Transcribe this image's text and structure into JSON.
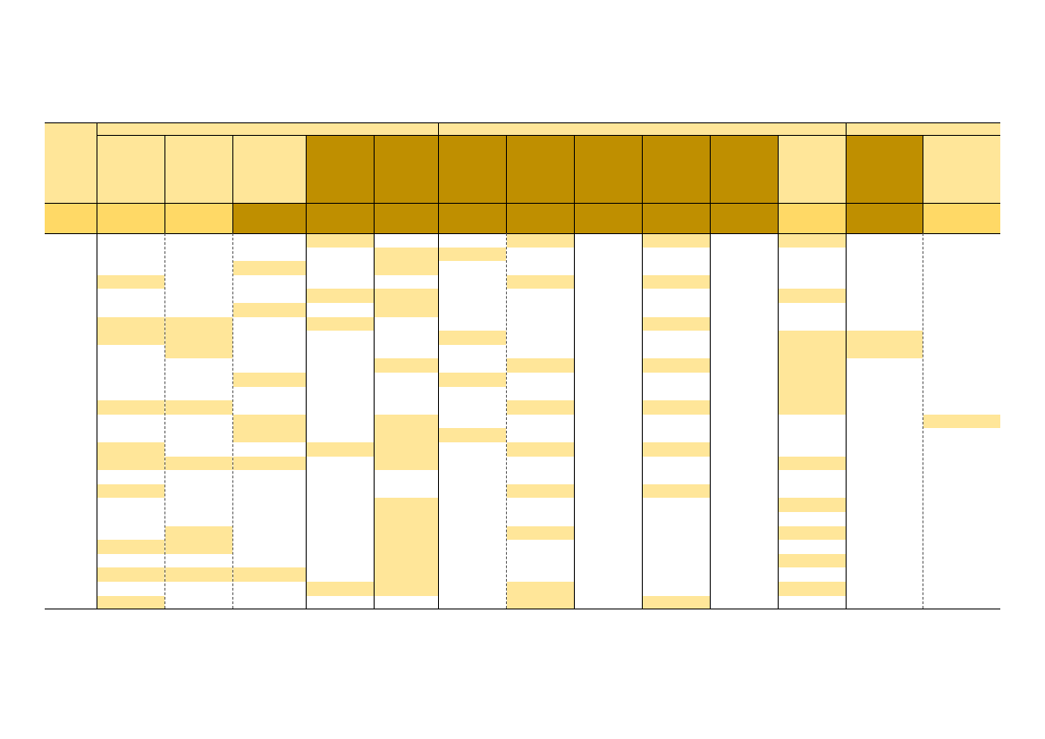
{
  "colors": {
    "light": "#FFE699",
    "medium": "#FFD966",
    "dark": "#BF8F00",
    "grid": "#000000"
  },
  "sheet": {
    "group_headers": [
      "",
      "",
      ""
    ],
    "column_headers": [
      "",
      "",
      "",
      "",
      "",
      "",
      "",
      "",
      "",
      "",
      "",
      "",
      "",
      ""
    ],
    "row_label": ""
  }
}
